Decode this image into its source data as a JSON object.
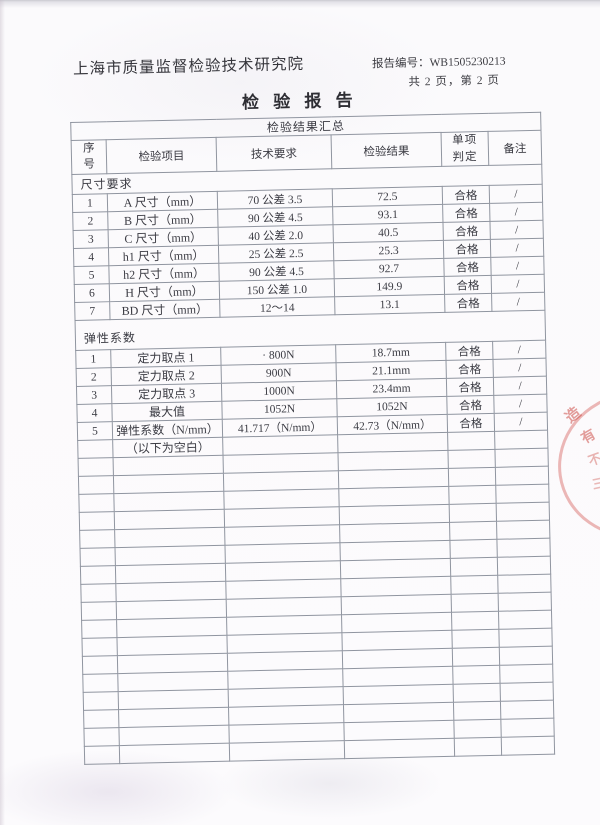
{
  "header": {
    "org_name": "上海市质量监督检验技术研究院",
    "report_no_label": "报告编号：",
    "report_no": "WB1505230213",
    "page_info": "共 2 页，第 2 页",
    "title": "检 验 报 告"
  },
  "table": {
    "summary_title": "检验结果汇总",
    "headers": {
      "seq": "序号",
      "item": "检验项目",
      "requirement": "技术要求",
      "result": "检验结果",
      "judgment": "单项判定",
      "remark": "备注"
    },
    "sections": [
      {
        "name": "尺寸要求",
        "rows": [
          {
            "seq": "1",
            "item": "A 尺寸（mm）",
            "req": "70 公差 3.5",
            "result": "72.5",
            "judge": "合格",
            "remark": "/"
          },
          {
            "seq": "2",
            "item": "B 尺寸（mm）",
            "req": "90 公差 4.5",
            "result": "93.1",
            "judge": "合格",
            "remark": "/"
          },
          {
            "seq": "3",
            "item": "C 尺寸（mm）",
            "req": "40 公差 2.0",
            "result": "40.5",
            "judge": "合格",
            "remark": "/"
          },
          {
            "seq": "4",
            "item": "h1 尺寸（mm）",
            "req": "25 公差 2.5",
            "result": "25.3",
            "judge": "合格",
            "remark": "/"
          },
          {
            "seq": "5",
            "item": "h2 尺寸（mm）",
            "req": "90 公差 4.5",
            "result": "92.7",
            "judge": "合格",
            "remark": "/"
          },
          {
            "seq": "6",
            "item": "H 尺寸（mm）",
            "req": "150 公差 1.0",
            "result": "149.9",
            "judge": "合格",
            "remark": "/"
          },
          {
            "seq": "7",
            "item": "BD 尺寸（mm）",
            "req": "12～14",
            "result": "13.1",
            "judge": "合格",
            "remark": "/"
          }
        ]
      },
      {
        "name": "弹性系数",
        "rows": [
          {
            "seq": "1",
            "item": "定力取点 1",
            "req": "· 800N",
            "result": "18.7mm",
            "judge": "合格",
            "remark": "/"
          },
          {
            "seq": "2",
            "item": "定力取点 2",
            "req": "900N",
            "result": "21.1mm",
            "judge": "合格",
            "remark": "/"
          },
          {
            "seq": "3",
            "item": "定力取点 3",
            "req": "1000N",
            "result": "23.4mm",
            "judge": "合格",
            "remark": "/"
          },
          {
            "seq": "4",
            "item": "最大值",
            "req": "1052N",
            "result": "1052N",
            "judge": "合格",
            "remark": "/"
          },
          {
            "seq": "5",
            "item": "弹性系数（N/mm）",
            "req": "41.717（N/mm）",
            "result": "42.73（N/mm）",
            "judge": "合格",
            "remark": "/"
          }
        ]
      }
    ],
    "blank_note": "（以下为空白）",
    "empty_row_count": 17
  },
  "stamp": {
    "color": "#cd4e48",
    "chars": [
      "造",
      "有",
      "不",
      "三"
    ]
  }
}
